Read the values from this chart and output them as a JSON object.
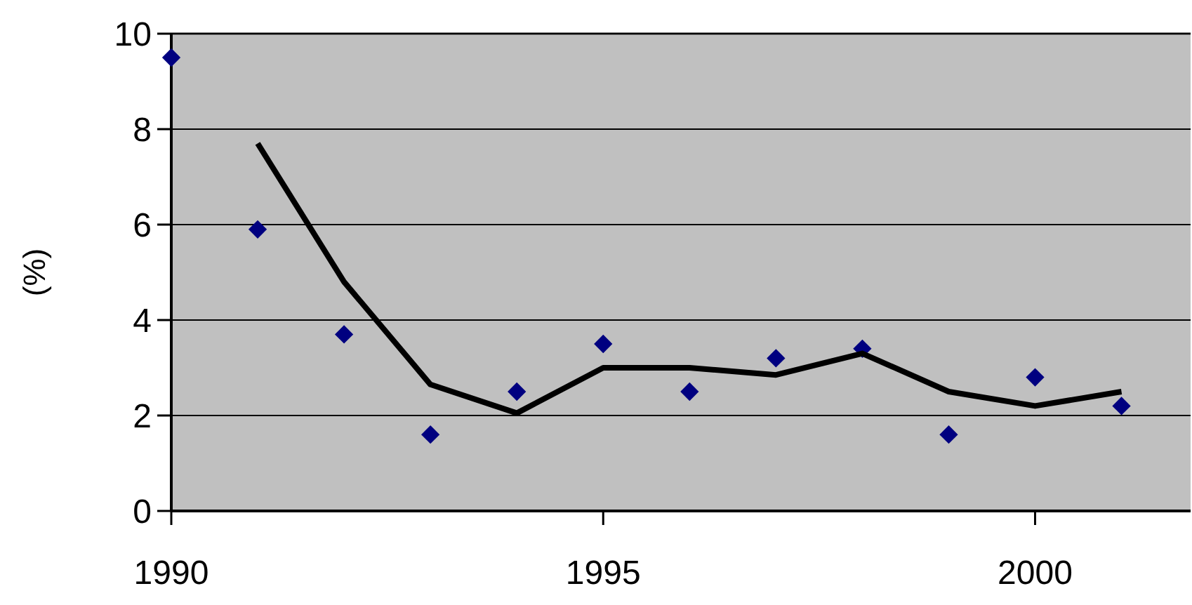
{
  "chart_data": {
    "type": "scatter",
    "ylabel": "(%)",
    "x": [
      1990,
      1991,
      1992,
      1993,
      1994,
      1995,
      1996,
      1997,
      1998,
      1999,
      2000,
      2001
    ],
    "series": [
      {
        "color": "#000080",
        "marker": "diamond",
        "values": [
          9.5,
          5.9,
          3.7,
          1.6,
          2.5,
          3.5,
          2.5,
          3.2,
          3.4,
          1.6,
          2.8,
          2.2
        ]
      },
      {
        "type": "line",
        "color": "#000000",
        "marker": "none",
        "line_style": "solid",
        "x": [
          1991,
          1992,
          1993,
          1994,
          1995,
          1996,
          1997,
          1998,
          1999,
          2000,
          2001
        ],
        "values": [
          7.7,
          4.8,
          2.65,
          2.05,
          3.0,
          3.0,
          2.85,
          3.3,
          2.5,
          2.2,
          2.5
        ]
      }
    ],
    "xlim": [
      1990,
      2001.8
    ],
    "xticks": [
      1990,
      1995,
      2000
    ],
    "ylim": [
      0,
      10
    ],
    "yticks": [
      0,
      2,
      4,
      6,
      8,
      10
    ],
    "grid": "y"
  }
}
